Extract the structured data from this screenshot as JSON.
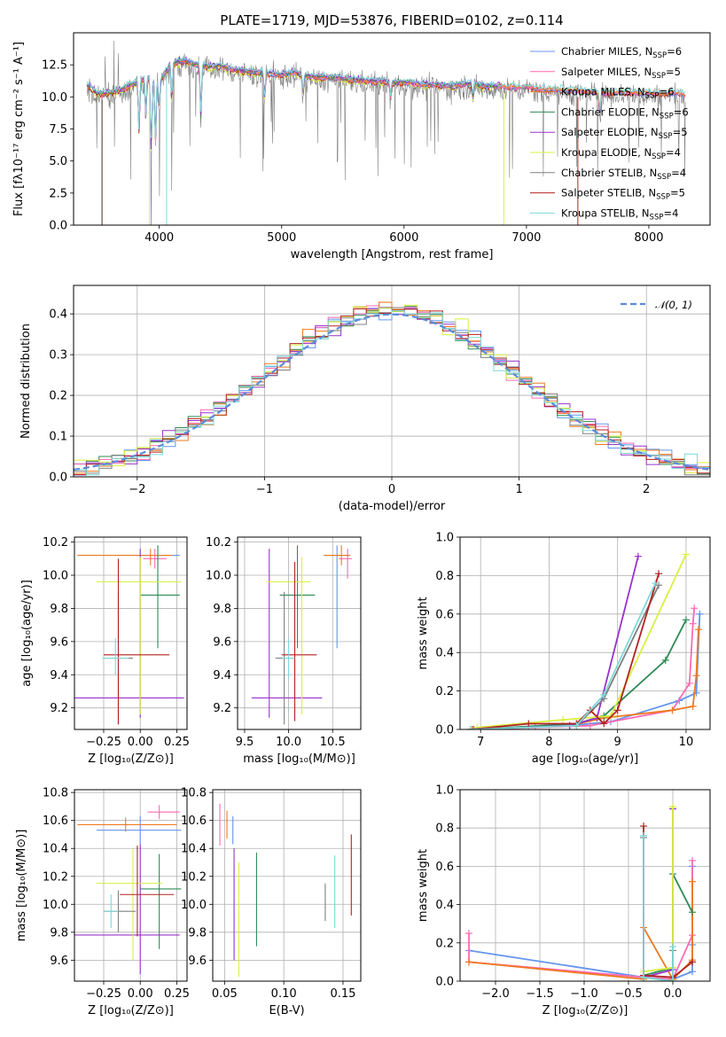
{
  "figure": {
    "title": "PLATE=1719, MJD=53876, FIBERID=0102, z=0.114"
  },
  "colors": {
    "chabrier_miles": "#6495ed",
    "salpeter_miles": "#ff69b4",
    "kroupa_miles": "#ef7a1f",
    "chabrier_elodie": "#2e8b57",
    "salpeter_elodie": "#9932cc",
    "kroupa_elodie": "#d8f040",
    "chabrier_stelib": "#808080",
    "salpeter_stelib": "#b22222",
    "kroupa_stelib": "#7fd8d8"
  },
  "chart_data": [
    {
      "id": "spectrum",
      "type": "line",
      "xlabel": "wavelength [Angstrom, rest frame]",
      "ylabel": "Flux [f_λ 10^-17 erg cm^-2 s^-1 A^-1]",
      "xlim": [
        3300,
        8500
      ],
      "ylim": [
        0,
        15
      ],
      "xticks": [
        4000,
        5000,
        6000,
        7000,
        8000
      ],
      "yticks": [
        0.0,
        2.5,
        5.0,
        7.5,
        10.0,
        12.5
      ],
      "legend_position": "right",
      "series": [
        {
          "name": "Chabrier MILES, N_SSP=6",
          "color_key": "chabrier_miles"
        },
        {
          "name": "Salpeter MILES, N_SSP=5",
          "color_key": "salpeter_miles"
        },
        {
          "name": "Kroupa MILES, N_SSP=6",
          "color_key": "kroupa_miles"
        },
        {
          "name": "Chabrier ELODIE, N_SSP=6",
          "color_key": "chabrier_elodie"
        },
        {
          "name": "Salpeter ELODIE, N_SSP=5",
          "color_key": "salpeter_elodie"
        },
        {
          "name": "Kroupa ELODIE, N_SSP=4",
          "color_key": "kroupa_elodie"
        },
        {
          "name": "Chabrier STELIB, N_SSP=4",
          "color_key": "chabrier_stelib"
        },
        {
          "name": "Salpeter STELIB, N_SSP=5",
          "color_key": "salpeter_stelib"
        },
        {
          "name": "Kroupa STELIB, N_SSP=4",
          "color_key": "kroupa_stelib"
        }
      ],
      "continuum_x": [
        3410,
        3500,
        3600,
        3700,
        3800,
        3900,
        4000,
        4100,
        4200,
        4300,
        4400,
        4500,
        4600,
        4700,
        4800,
        4900,
        5000,
        5100,
        5200,
        5300,
        5400,
        5500,
        5600,
        5700,
        5800,
        5900,
        6000,
        6100,
        6200,
        6300,
        6400,
        6500,
        6600,
        6700,
        6800,
        6900,
        7000,
        7100,
        7200,
        7300,
        7400,
        7500,
        7600,
        7700,
        7800,
        7900,
        8000,
        8100,
        8200,
        8300
      ],
      "continuum_y": [
        10.9,
        10.2,
        10.3,
        10.6,
        11.0,
        11.5,
        11.2,
        12.6,
        12.8,
        12.5,
        12.3,
        12.4,
        12.1,
        12.0,
        11.9,
        11.8,
        11.7,
        11.9,
        11.6,
        11.5,
        11.5,
        11.4,
        11.3,
        11.2,
        11.2,
        11.1,
        11.1,
        11.0,
        10.9,
        10.9,
        10.8,
        11.0,
        10.9,
        10.8,
        10.8,
        10.7,
        10.8,
        10.6,
        10.6,
        10.5,
        10.5,
        10.4,
        10.3,
        10.3,
        10.4,
        10.3,
        10.3,
        10.2,
        10.3,
        10.2
      ]
    },
    {
      "id": "residuals",
      "type": "histogram",
      "xlabel": "(data-model)/error",
      "ylabel": "Normed distribution",
      "xlim": [
        -2.5,
        2.5
      ],
      "ylim": [
        0,
        0.47
      ],
      "xticks": [
        -2,
        -1,
        0,
        1,
        2
      ],
      "yticks": [
        0.0,
        0.1,
        0.2,
        0.3,
        0.4
      ],
      "grid": true,
      "legend_position": "top-right",
      "reference_curve": {
        "name": "𝒩(0, 1)",
        "mean": 0,
        "sigma": 1
      }
    },
    {
      "id": "age_vs_Z",
      "type": "errorbar",
      "xlabel": "Z [log10(Z/Z⊙)]",
      "ylabel": "age  [log10(age/yr)]",
      "xlim": [
        -0.45,
        0.32
      ],
      "ylim": [
        9.07,
        10.23
      ],
      "xticks": [
        -0.25,
        0.0,
        0.25
      ],
      "xticklabels": [
        "−0.25",
        "0.00",
        "0.25"
      ],
      "yticks": [
        9.2,
        9.4,
        9.6,
        9.8,
        10.0,
        10.2
      ],
      "grid": true,
      "points": [
        {
          "c": "chabrier_miles",
          "x": 0.12,
          "xerr": [
            0.15,
            0.15
          ],
          "y": 10.12,
          "yerr": [
            0.06,
            0.06
          ]
        },
        {
          "c": "salpeter_miles",
          "x": 0.1,
          "xerr": [
            0.08,
            0.08
          ],
          "y": 10.1,
          "yerr": [
            0.06,
            0.06
          ]
        },
        {
          "c": "kroupa_miles",
          "x": 0.07,
          "xerr": [
            0.5,
            0.15
          ],
          "y": 10.12,
          "yerr": [
            0.06,
            0.04
          ]
        },
        {
          "c": "chabrier_elodie",
          "x": 0.12,
          "xerr": [
            0.12,
            0.15
          ],
          "y": 9.88,
          "yerr": [
            0.32,
            0.3
          ]
        },
        {
          "c": "salpeter_elodie",
          "x": 0.0,
          "xerr": [
            0.45,
            0.3
          ],
          "y": 9.26,
          "yerr": [
            0.12,
            0.9
          ]
        },
        {
          "c": "kroupa_elodie",
          "x": 0.0,
          "xerr": [
            0.3,
            0.28
          ],
          "y": 9.96,
          "yerr": [
            0.8,
            0.15
          ]
        },
        {
          "c": "chabrier_stelib",
          "x": -0.15,
          "xerr": [
            0.1,
            0.1
          ],
          "y": 9.5,
          "yerr": [
            0.4,
            0.4
          ]
        },
        {
          "c": "salpeter_stelib",
          "x": -0.15,
          "xerr": [
            0.1,
            0.35
          ],
          "y": 9.52,
          "yerr": [
            0.42,
            0.58
          ]
        },
        {
          "c": "kroupa_stelib",
          "x": -0.17,
          "xerr": [
            0.09,
            0.09
          ],
          "y": 9.5,
          "yerr": [
            0.1,
            0.12
          ]
        }
      ]
    },
    {
      "id": "age_vs_mass",
      "type": "errorbar",
      "xlabel": "mass [log10(M/M⊙)]",
      "ylabel": "",
      "xlim": [
        9.42,
        10.82
      ],
      "ylim": [
        9.07,
        10.23
      ],
      "xticks": [
        9.5,
        10.0,
        10.5
      ],
      "yticks": [
        9.2,
        9.4,
        9.6,
        9.8,
        10.0,
        10.2
      ],
      "grid": true,
      "points": [
        {
          "c": "chabrier_miles",
          "x": 10.55,
          "xerr": [
            0.15,
            0.15
          ],
          "y": 10.12,
          "yerr": [
            0.56,
            0.06
          ]
        },
        {
          "c": "salpeter_miles",
          "x": 10.67,
          "xerr": [
            0.1,
            0.05
          ],
          "y": 10.1,
          "yerr": [
            0.12,
            0.06
          ]
        },
        {
          "c": "kroupa_miles",
          "x": 10.6,
          "xerr": [
            0.2,
            0.1
          ],
          "y": 10.12,
          "yerr": [
            0.06,
            0.06
          ]
        },
        {
          "c": "chabrier_elodie",
          "x": 10.1,
          "xerr": [
            0.2,
            0.2
          ],
          "y": 9.88,
          "yerr": [
            0.32,
            0.3
          ]
        },
        {
          "c": "salpeter_elodie",
          "x": 9.78,
          "xerr": [
            0.2,
            0.6
          ],
          "y": 9.26,
          "yerr": [
            0.12,
            0.9
          ]
        },
        {
          "c": "kroupa_elodie",
          "x": 10.15,
          "xerr": [
            0.4,
            0.1
          ],
          "y": 9.96,
          "yerr": [
            0.8,
            0.15
          ]
        },
        {
          "c": "chabrier_stelib",
          "x": 9.95,
          "xerr": [
            0.1,
            0.1
          ],
          "y": 9.5,
          "yerr": [
            0.4,
            0.4
          ]
        },
        {
          "c": "salpeter_stelib",
          "x": 10.07,
          "xerr": [
            0.15,
            0.25
          ],
          "y": 9.52,
          "yerr": [
            0.4,
            0.56
          ]
        },
        {
          "c": "kroupa_stelib",
          "x": 10.0,
          "xerr": [
            0.07,
            0.07
          ],
          "y": 9.5,
          "yerr": [
            0.12,
            0.12
          ]
        }
      ]
    },
    {
      "id": "mass_weight_vs_age",
      "type": "line",
      "xlabel": "age  [log10(age/yr)]",
      "ylabel": "mass weight",
      "xlim": [
        6.7,
        10.35
      ],
      "ylim": [
        0,
        1.0
      ],
      "xticks": [
        7,
        8,
        9,
        10
      ],
      "yticks": [
        0.0,
        0.2,
        0.4,
        0.6,
        0.8,
        1.0
      ],
      "grid": true,
      "series": [
        {
          "c": "chabrier_miles",
          "x": [
            6.88,
            7.7,
            8.3,
            8.9,
            9.9,
            10.15,
            10.2
          ],
          "y": [
            0.0,
            0.01,
            0.02,
            0.04,
            0.15,
            0.19,
            0.6
          ]
        },
        {
          "c": "salpeter_miles",
          "x": [
            6.88,
            7.8,
            8.6,
            9.8,
            10.05,
            10.1,
            10.12
          ],
          "y": [
            0.0,
            0.01,
            0.02,
            0.1,
            0.24,
            0.55,
            0.63
          ]
        },
        {
          "c": "kroupa_miles",
          "x": [
            6.88,
            8.3,
            8.8,
            9.8,
            10.1,
            10.15,
            10.18
          ],
          "y": [
            0.0,
            0.02,
            0.06,
            0.1,
            0.12,
            0.28,
            0.52
          ]
        },
        {
          "c": "chabrier_elodie",
          "x": [
            6.9,
            8.4,
            8.8,
            9.7,
            10.0
          ],
          "y": [
            0.0,
            0.03,
            0.07,
            0.36,
            0.57
          ]
        },
        {
          "c": "salpeter_elodie",
          "x": [
            6.9,
            8.3,
            8.7,
            9.3
          ],
          "y": [
            0.0,
            0.02,
            0.06,
            0.9
          ]
        },
        {
          "c": "kroupa_elodie",
          "x": [
            6.95,
            8.2,
            8.9,
            10.0
          ],
          "y": [
            0.01,
            0.05,
            0.07,
            0.91
          ]
        },
        {
          "c": "chabrier_stelib",
          "x": [
            6.85,
            8.4,
            8.8,
            9.6
          ],
          "y": [
            0.0,
            0.02,
            0.16,
            0.75
          ]
        },
        {
          "c": "salpeter_stelib",
          "x": [
            6.85,
            7.7,
            8.4,
            8.6,
            8.8,
            9.0,
            9.6
          ],
          "y": [
            0.0,
            0.03,
            0.03,
            0.1,
            0.03,
            0.1,
            0.81
          ]
        },
        {
          "c": "kroupa_stelib",
          "x": [
            6.85,
            8.4,
            8.8,
            9.55
          ],
          "y": [
            0.0,
            0.02,
            0.18,
            0.76
          ]
        }
      ]
    },
    {
      "id": "mass_vs_Z",
      "type": "errorbar",
      "xlabel": "Z [log10(Z/Z⊙)]",
      "ylabel": "mass [log10(M/M⊙)]",
      "xlim": [
        -0.45,
        0.32
      ],
      "ylim": [
        9.45,
        10.82
      ],
      "xticks": [
        -0.25,
        0.0,
        0.25
      ],
      "xticklabels": [
        "−0.25",
        "0.00",
        "0.25"
      ],
      "yticks": [
        9.6,
        9.8,
        10.0,
        10.2,
        10.4,
        10.6,
        10.8
      ],
      "grid": true,
      "points": [
        {
          "c": "chabrier_miles",
          "x": 0.0,
          "xerr": [
            0.3,
            0.28
          ],
          "y": 10.53,
          "yerr": [
            0.1,
            0.1
          ]
        },
        {
          "c": "salpeter_miles",
          "x": 0.13,
          "xerr": [
            0.08,
            0.14
          ],
          "y": 10.66,
          "yerr": [
            0.05,
            0.05
          ]
        },
        {
          "c": "kroupa_miles",
          "x": -0.1,
          "xerr": [
            0.33,
            0.35
          ],
          "y": 10.57,
          "yerr": [
            0.05,
            0.05
          ]
        },
        {
          "c": "chabrier_elodie",
          "x": 0.13,
          "xerr": [
            0.13,
            0.15
          ],
          "y": 10.11,
          "yerr": [
            0.43,
            0.25
          ]
        },
        {
          "c": "salpeter_elodie",
          "x": 0.0,
          "xerr": [
            0.45,
            0.27
          ],
          "y": 9.78,
          "yerr": [
            0.28,
            0.65
          ]
        },
        {
          "c": "kroupa_elodie",
          "x": -0.05,
          "xerr": [
            0.25,
            0.2
          ],
          "y": 10.15,
          "yerr": [
            0.55,
            0.25
          ]
        },
        {
          "c": "chabrier_stelib",
          "x": -0.15,
          "xerr": [
            0.1,
            0.12
          ],
          "y": 9.95,
          "yerr": [
            0.15,
            0.15
          ]
        },
        {
          "c": "salpeter_stelib",
          "x": -0.02,
          "xerr": [
            0.12,
            0.25
          ],
          "y": 10.07,
          "yerr": [
            0.3,
            0.35
          ]
        },
        {
          "c": "kroupa_stelib",
          "x": -0.2,
          "xerr": [
            0.05,
            0.05
          ],
          "y": 9.95,
          "yerr": [
            0.12,
            0.12
          ]
        }
      ]
    },
    {
      "id": "mass_vs_ebv",
      "type": "errorbar",
      "xlabel": "E(B-V)",
      "ylabel": "",
      "xlim": [
        0.04,
        0.165
      ],
      "ylim": [
        9.45,
        10.82
      ],
      "xticks": [
        0.05,
        0.1,
        0.15
      ],
      "yticks": [
        9.6,
        9.8,
        10.0,
        10.2,
        10.4,
        10.6,
        10.8
      ],
      "grid": true,
      "points": [
        {
          "c": "chabrier_miles",
          "x": 0.057,
          "y": 10.53,
          "yerr": [
            0.1,
            0.1
          ]
        },
        {
          "c": "salpeter_miles",
          "x": 0.046,
          "y": 10.57,
          "yerr": [
            0.15,
            0.15
          ]
        },
        {
          "c": "kroupa_miles",
          "x": 0.052,
          "y": 10.57,
          "yerr": [
            0.1,
            0.1
          ]
        },
        {
          "c": "chabrier_elodie",
          "x": 0.077,
          "y": 10.0,
          "yerr": [
            0.3,
            0.37
          ]
        },
        {
          "c": "salpeter_elodie",
          "x": 0.058,
          "y": 10.0,
          "yerr": [
            0.4,
            0.4
          ]
        },
        {
          "c": "kroupa_elodie",
          "x": 0.062,
          "y": 10.0,
          "yerr": [
            0.52,
            0.3
          ]
        },
        {
          "c": "chabrier_stelib",
          "x": 0.135,
          "y": 10.03,
          "yerr": [
            0.15,
            0.12
          ]
        },
        {
          "c": "salpeter_stelib",
          "x": 0.157,
          "y": 10.21,
          "yerr": [
            0.29,
            0.29
          ]
        },
        {
          "c": "kroupa_stelib",
          "x": 0.143,
          "y": 10.1,
          "yerr": [
            0.27,
            0.25
          ]
        }
      ]
    },
    {
      "id": "mass_weight_vs_Z",
      "type": "line",
      "xlabel": "Z [log10(Z/Z⊙)]",
      "ylabel": "mass weight",
      "xlim": [
        -2.4,
        0.42
      ],
      "ylim": [
        0,
        1.0
      ],
      "xticks": [
        -2.0,
        -1.5,
        -1.0,
        -0.5,
        0.0
      ],
      "xticklabels": [
        "−2.0",
        "−1.5",
        "−1.0",
        "−0.5",
        "0.0"
      ],
      "yticks": [
        0.0,
        0.2,
        0.4,
        0.6,
        0.8,
        1.0
      ],
      "grid": true,
      "series": [
        {
          "c": "chabrier_miles",
          "x": [
            -2.3,
            -0.33,
            0.0,
            0.22,
            0.22,
            0.22
          ],
          "y": [
            0.16,
            0.02,
            0.01,
            0.05,
            0.19,
            0.6
          ]
        },
        {
          "c": "salpeter_miles",
          "x": [
            -2.3,
            -2.3,
            -0.33,
            0.0,
            0.22,
            0.22
          ],
          "y": [
            0.25,
            0.1,
            0.02,
            0.01,
            0.24,
            0.63
          ]
        },
        {
          "c": "kroupa_miles",
          "x": [
            -2.3,
            -0.33,
            -0.33,
            0.0,
            0.22,
            0.22
          ],
          "y": [
            0.1,
            0.01,
            0.28,
            0.01,
            0.11,
            0.52
          ]
        },
        {
          "c": "chabrier_elodie",
          "x": [
            -0.33,
            0.0,
            0.0,
            0.22
          ],
          "y": [
            0.03,
            0.07,
            0.56,
            0.36
          ]
        },
        {
          "c": "salpeter_elodie",
          "x": [
            -0.33,
            0.0,
            0.0
          ],
          "y": [
            0.02,
            0.06,
            0.9
          ]
        },
        {
          "c": "kroupa_elodie",
          "x": [
            -0.33,
            0.0,
            0.0
          ],
          "y": [
            0.05,
            0.07,
            0.91
          ]
        },
        {
          "c": "chabrier_stelib",
          "x": [
            -0.33,
            -0.33,
            0.0,
            0.0
          ],
          "y": [
            0.75,
            0.02,
            0.0,
            0.16
          ]
        },
        {
          "c": "salpeter_stelib",
          "x": [
            -0.33,
            -0.33,
            0.0,
            0.22
          ],
          "y": [
            0.81,
            0.03,
            0.02,
            0.1
          ]
        },
        {
          "c": "kroupa_stelib",
          "x": [
            -0.33,
            -0.33,
            0.0,
            0.0
          ],
          "y": [
            0.76,
            0.02,
            0.0,
            0.18
          ]
        }
      ]
    }
  ]
}
